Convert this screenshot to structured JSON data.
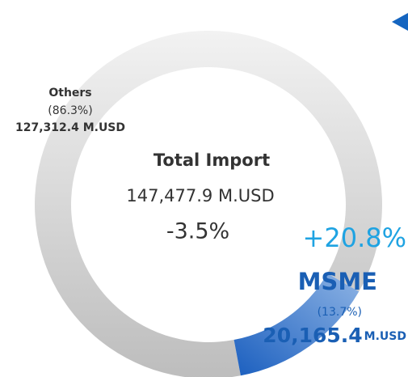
{
  "chart_data": {
    "type": "donut",
    "categories": [
      "Others",
      "MSME"
    ],
    "values": [
      86.3,
      13.7
    ],
    "value_labels": [
      "(86.3%)",
      "(13.7%)"
    ],
    "amount_labels": [
      "127,312.4",
      "20,165.4"
    ],
    "unit": "M.USD",
    "colors": [
      "#d6d6d6",
      "#2a6cc4"
    ],
    "center_title": "Total Import",
    "total_label": "147,477.9",
    "total_change": "-3.5%",
    "msme_change": "+20.8%"
  }
}
